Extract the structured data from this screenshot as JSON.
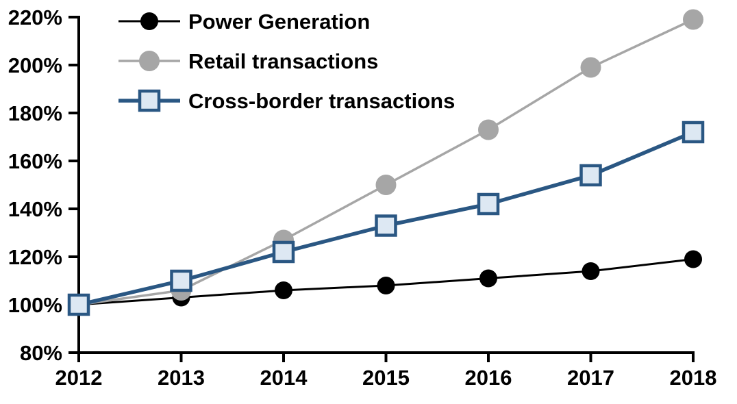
{
  "chart_data": {
    "type": "line",
    "x": [
      "2012",
      "2013",
      "2014",
      "2015",
      "2016",
      "2017",
      "2018"
    ],
    "xlabel": "",
    "ylabel": "",
    "ylim": [
      80,
      220
    ],
    "ytick_step": 20,
    "ytick_labels": [
      "80%",
      "100%",
      "120%",
      "140%",
      "160%",
      "180%",
      "200%",
      "220%"
    ],
    "unit": "%",
    "grid": false,
    "legend_position": "top-left-inside",
    "series": [
      {
        "name": "Power Generation",
        "values": [
          100,
          103,
          106,
          108,
          111,
          114,
          119
        ],
        "color": "#000000",
        "marker": "circle",
        "marker_fill": "#000000",
        "marker_radius": 13,
        "line_width": 3
      },
      {
        "name": "Retail transactions",
        "values": [
          100,
          106,
          127,
          150,
          173,
          199,
          219
        ],
        "color": "#a6a6a6",
        "marker": "circle",
        "marker_fill": "#a6a6a6",
        "marker_radius": 15,
        "line_width": 3.5
      },
      {
        "name": "Cross-border transactions",
        "values": [
          100,
          110,
          122,
          133,
          142,
          154,
          172
        ],
        "color": "#2a5783",
        "marker": "square",
        "marker_fill": "#dde8f3",
        "marker_radius": 14,
        "line_width": 5.5
      }
    ],
    "axis_color": "#000000"
  }
}
